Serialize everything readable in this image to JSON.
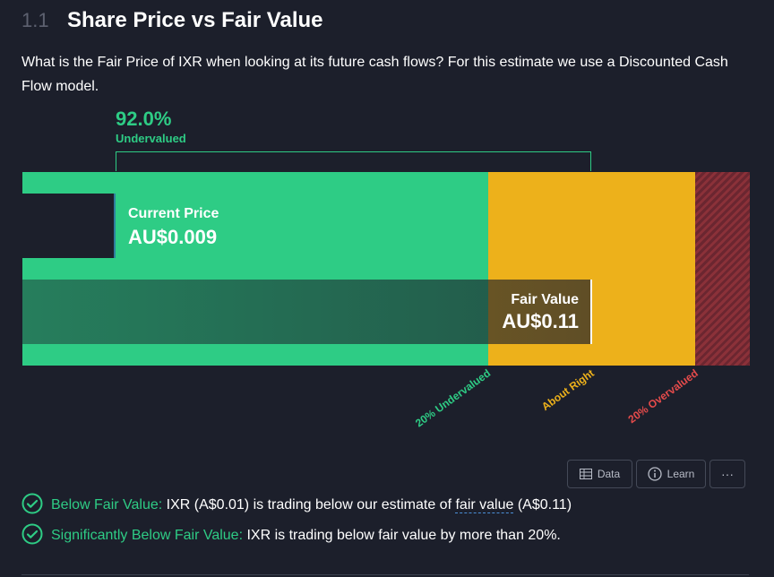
{
  "header": {
    "section_number": "1.1",
    "title": "Share Price vs Fair Value"
  },
  "intro_text": "What is the Fair Price of IXR when looking at its future cash flows? For this estimate we use a Discounted Cash Flow model.",
  "valuation": {
    "percent": "92.0%",
    "status": "Undervalued",
    "current_price_label": "Current Price",
    "current_price_value": "AU$0.009",
    "fair_value_label": "Fair Value",
    "fair_value_value": "AU$0.11"
  },
  "zones": [
    "20% Undervalued",
    "About Right",
    "20% Overvalued"
  ],
  "colors": {
    "undervalued": "#2ecc85",
    "about_right": "#edb11b",
    "overvalued": "#e64b4b",
    "background": "#1c1f2b"
  },
  "toolbar": {
    "data_label": "Data",
    "learn_label": "Learn",
    "more_label": "···"
  },
  "checks": [
    {
      "title": "Below Fair Value:",
      "text_before": " IXR (A$0.01) is trading below our estimate of ",
      "link": "fair value",
      "text_after": " (A$0.11)"
    },
    {
      "title": "Significantly Below Fair Value:",
      "text": " IXR is trading below fair value by more than 20%."
    }
  ]
}
